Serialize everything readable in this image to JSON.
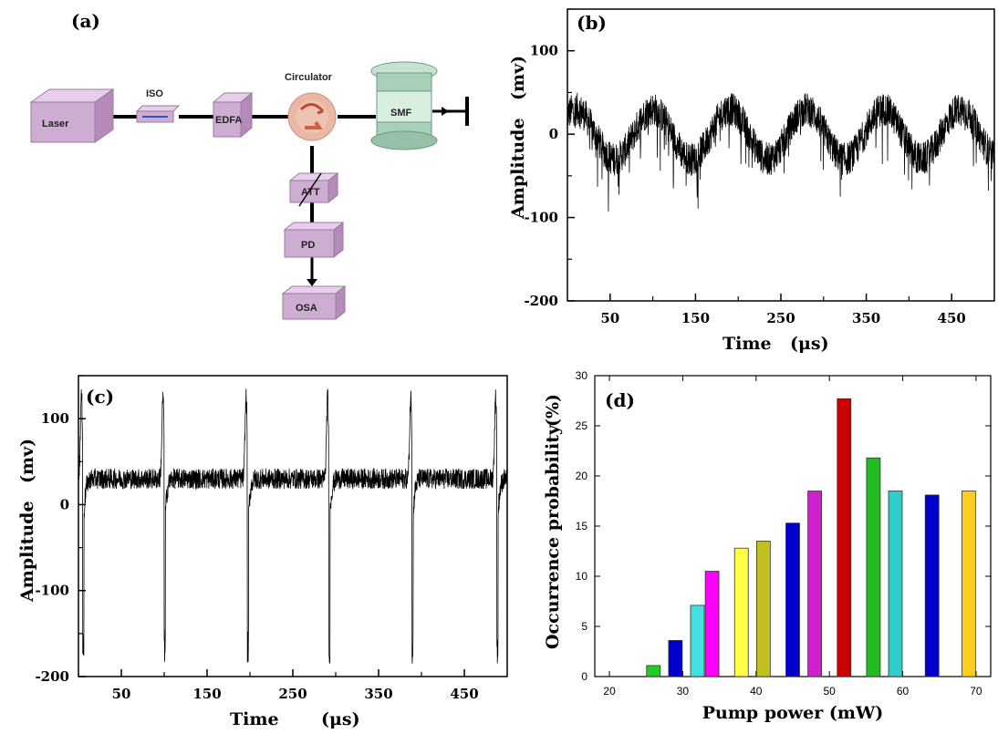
{
  "diagram": {
    "panel_label": "(a)",
    "components": {
      "laser": "Laser",
      "iso": "ISO",
      "edfa": "EDFA",
      "circulator": "Circulator",
      "smf": "SMF",
      "att": "ATT",
      "pd": "PD",
      "osa": "OSA"
    }
  },
  "chart_data": [
    {
      "panel_label": "(b)",
      "type": "line",
      "xlabel": "Time",
      "xunit": "(μs)",
      "ylabel": "Amplitude",
      "yunit": "(mv)",
      "xlim": [
        0,
        500
      ],
      "ylim": [
        -200,
        150
      ],
      "xticks": [
        50,
        150,
        250,
        350,
        450
      ],
      "yticks": [
        100,
        0,
        -100,
        -200
      ],
      "signal": {
        "description_values": {
          "baseline_mean": 0,
          "oscillation_amplitude": 30,
          "period_us": 90,
          "peaks_at_us": [
            10,
            100,
            190,
            280,
            370,
            460
          ],
          "noise_band": 20
        }
      }
    },
    {
      "panel_label": "(c)",
      "type": "line",
      "xlabel": "Time",
      "xunit": "(μs)",
      "ylabel": "Amplitude",
      "yunit": "(mv)",
      "xlim": [
        0,
        500
      ],
      "ylim": [
        -200,
        150
      ],
      "xticks": [
        50,
        150,
        250,
        350,
        450
      ],
      "yticks": [
        100,
        0,
        -100,
        -200
      ],
      "signal": {
        "description_values": {
          "baseline_mean": 30,
          "noise_band": 12,
          "pulse_times_us": [
            5,
            100,
            197,
            292,
            389,
            488
          ],
          "pulse_peak": 125,
          "pulse_min": -185
        }
      }
    },
    {
      "panel_label": "(d)",
      "type": "bar",
      "xlabel": "Pump power (mW)",
      "ylabel": "Occurrence probability",
      "yunit": "(%)",
      "xlim": [
        18,
        72
      ],
      "ylim": [
        0,
        30
      ],
      "xticks": [
        20,
        30,
        40,
        50,
        60,
        70
      ],
      "yticks": [
        0,
        5,
        10,
        15,
        20,
        25,
        30
      ],
      "bars": [
        {
          "x": 26,
          "value": 1.1,
          "color": "#22cc22"
        },
        {
          "x": 29,
          "value": 3.6,
          "color": "#0000cc"
        },
        {
          "x": 32,
          "value": 7.1,
          "color": "#44e0e0"
        },
        {
          "x": 34,
          "value": 10.5,
          "color": "#ff00ff"
        },
        {
          "x": 38,
          "value": 12.8,
          "color": "#ffff44"
        },
        {
          "x": 41,
          "value": 13.5,
          "color": "#c0c020"
        },
        {
          "x": 45,
          "value": 15.3,
          "color": "#0000cc"
        },
        {
          "x": 48,
          "value": 18.5,
          "color": "#cc22cc"
        },
        {
          "x": 52,
          "value": 27.7,
          "color": "#cc0000"
        },
        {
          "x": 56,
          "value": 21.8,
          "color": "#22bb22"
        },
        {
          "x": 59,
          "value": 18.5,
          "color": "#33cccc"
        },
        {
          "x": 64,
          "value": 18.1,
          "color": "#0000cc"
        },
        {
          "x": 69,
          "value": 18.5,
          "color": "#ffcc22"
        }
      ]
    }
  ]
}
